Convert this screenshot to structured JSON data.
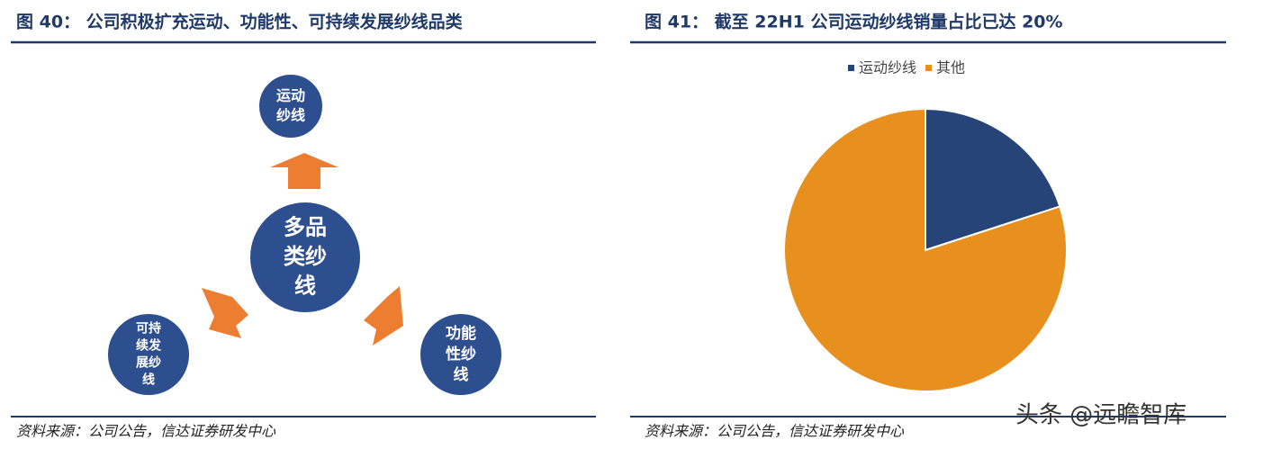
{
  "figure40": {
    "title": "图 40： 公司积极扩充运动、功能性、可持续发展纱线品类",
    "nodes": [
      {
        "label": [
          "运动",
          "纱线"
        ]
      },
      {
        "label": [
          "多品",
          "类纱",
          "线"
        ]
      },
      {
        "label": [
          "可持",
          "续发",
          "展纱",
          "线"
        ]
      },
      {
        "label": [
          "功能",
          "性纱",
          "线"
        ]
      }
    ],
    "source": "资料来源：公司公告，信达证券研发中心"
  },
  "chart_data": {
    "type": "pie",
    "title": "图 41： 截至 22H1 公司运动纱线销量占比已达 20%",
    "categories": [
      "运动纱线",
      "其他"
    ],
    "values": [
      20,
      80
    ],
    "colors": [
      "#264478",
      "#e8901e"
    ],
    "legend": "top"
  },
  "figure41_source": "资料来源：公司公告，信达证券研发中心",
  "watermark": "头条 @远瞻智库"
}
